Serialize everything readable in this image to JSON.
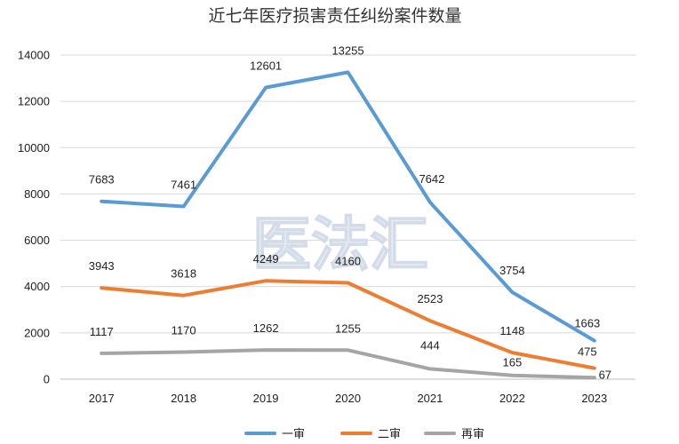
{
  "watermark": "医法汇",
  "colors": {
    "series": [
      "#5b9bd5",
      "#ed7d31",
      "#a5a5a5"
    ],
    "grid": "#d9d9d9",
    "axis": "#bfbfbf"
  },
  "chart_data": {
    "type": "line",
    "title": "近七年医疗损害责任纠纷案件数量",
    "xlabel": "",
    "ylabel": "",
    "categories": [
      "2017",
      "2018",
      "2019",
      "2020",
      "2021",
      "2022",
      "2023"
    ],
    "ylim": [
      0,
      14000
    ],
    "yticks": [
      "0",
      "2000",
      "4000",
      "6000",
      "8000",
      "10000",
      "12000",
      "14000"
    ],
    "grid": true,
    "legend": "bottom",
    "series": [
      {
        "name": "一审",
        "values": [
          7683,
          7461,
          12601,
          13255,
          7642,
          3754,
          1663
        ]
      },
      {
        "name": "二审",
        "values": [
          3943,
          3618,
          4249,
          4160,
          2523,
          1148,
          475
        ]
      },
      {
        "name": "再审",
        "values": [
          1117,
          1170,
          1262,
          1255,
          444,
          165,
          67
        ]
      }
    ]
  }
}
